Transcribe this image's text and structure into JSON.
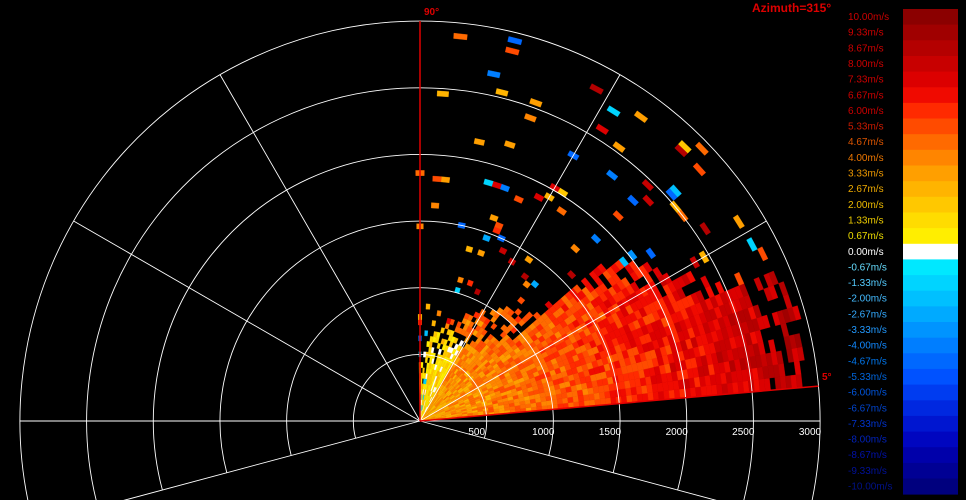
{
  "header": {
    "azimuth_text": "Azimuth=315°"
  },
  "chart_data": {
    "type": "heatmap",
    "plot": "RHI",
    "elevation_min_label": "5°",
    "elevation_max_label": "90°",
    "elevation_range_deg": [
      5,
      90
    ],
    "range_ticks": [
      "500",
      "1000",
      "1500",
      "2000",
      "2500",
      "3000"
    ],
    "range_ring_values": [
      0,
      500,
      1000,
      1500,
      2000,
      2500,
      3000
    ],
    "range_max": 3000,
    "spokes_deg": [
      -15,
      30,
      60,
      90,
      120,
      150,
      180,
      195
    ],
    "colorbar": {
      "unit": "m/s",
      "labels": [
        "10.00m/s",
        "9.33m/s",
        "8.67m/s",
        "8.00m/s",
        "7.33m/s",
        "6.67m/s",
        "6.00m/s",
        "5.33m/s",
        "4.67m/s",
        "4.00m/s",
        "3.33m/s",
        "2.67m/s",
        "2.00m/s",
        "1.33m/s",
        "0.67m/s",
        "0.00m/s",
        "-0.67m/s",
        "-1.33m/s",
        "-2.00m/s",
        "-2.67m/s",
        "-3.33m/s",
        "-4.00m/s",
        "-4.67m/s",
        "-5.33m/s",
        "-6.00m/s",
        "-6.67m/s",
        "-7.33m/s",
        "-8.00m/s",
        "-8.67m/s",
        "-9.33m/s",
        "-10.00m/s"
      ],
      "colors": [
        "#8b0000",
        "#a00000",
        "#b40000",
        "#c80000",
        "#dc0000",
        "#f00a00",
        "#ff2a00",
        "#ff4b00",
        "#ff6a00",
        "#ff8500",
        "#ff9f00",
        "#ffb400",
        "#ffc800",
        "#ffdc00",
        "#ffee00",
        "#ffffff",
        "#00e8ff",
        "#00d4ff",
        "#00c0ff",
        "#00aaff",
        "#0094ff",
        "#007eff",
        "#0068ff",
        "#0052ff",
        "#003cf0",
        "#0028e0",
        "#0016d0",
        "#0006c0",
        "#0000aa",
        "#000094",
        "#00007e"
      ],
      "label_colors": [
        "#cc0000",
        "#cc0000",
        "#cc0000",
        "#cc0000",
        "#cc0000",
        "#cc0000",
        "#cc0000",
        "#cc1a00",
        "#dd5500",
        "#ee7700",
        "#ee9900",
        "#eeaa00",
        "#eebb00",
        "#eecc00",
        "#eedd00",
        "#ffffff",
        "#66ddff",
        "#55ccff",
        "#44bbff",
        "#33aaff",
        "#2299ff",
        "#1188ff",
        "#0077ee",
        "#0066dd",
        "#0055dd",
        "#0044cc",
        "#0033cc",
        "#0022bb",
        "#0011aa",
        "#001199",
        "#001188"
      ]
    },
    "velocity_field_description_values": {
      "near_field_mean_ms": 3.0,
      "mid_field_mean_ms": 6.5,
      "far_field_mean_ms": 8.5
    }
  }
}
